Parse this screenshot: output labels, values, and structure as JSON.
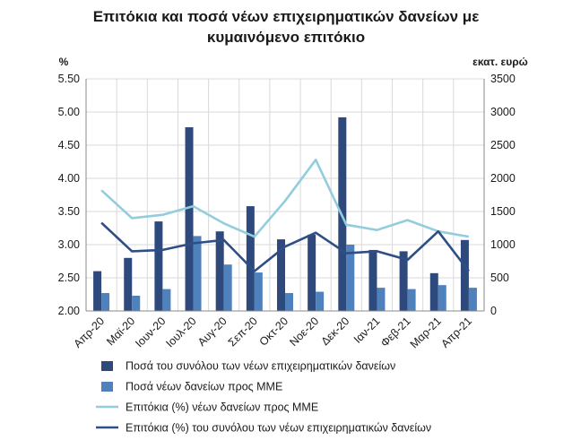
{
  "chart_data": {
    "type": "bar",
    "title_lines": [
      "Επιτόκια και ποσά νέων επιχειρηματικών δανείων με",
      "κυμαινόμενο επιτόκιο"
    ],
    "y_left_unit": "%",
    "y_right_unit": "εκατ. ευρώ",
    "y_left_ticks": [
      "2.00",
      "2.50",
      "3.00",
      "3.50",
      "4.00",
      "4.50",
      "5.00",
      "5.50"
    ],
    "y_right_ticks": [
      "0",
      "500",
      "1000",
      "1500",
      "2000",
      "2500",
      "3000",
      "3500"
    ],
    "y_left_range": [
      2.0,
      5.5
    ],
    "y_right_range": [
      0,
      3500
    ],
    "categories": [
      "Απρ-20",
      "Μαϊ-20",
      "Ιουν-20",
      "Ιουλ-20",
      "Αυγ-20",
      "Σεπ-20",
      "Οκτ-20",
      "Νοε-20",
      "Δεκ-20",
      "Ιαν-21",
      "Φεβ-21",
      "Μαρ-21",
      "Απρ-21"
    ],
    "legend_position": "bottom",
    "series": [
      {
        "name": "Ποσά του συνόλου των νέων επιχειρηματικών δανείων",
        "kind": "bar",
        "axis": "right",
        "color": "#2e4a7d",
        "values": [
          600,
          800,
          1350,
          2770,
          1200,
          1580,
          1080,
          1150,
          2920,
          920,
          900,
          570,
          1070
        ]
      },
      {
        "name": "Ποσά νέων δανείων προς ΜΜΕ",
        "kind": "bar",
        "axis": "right",
        "color": "#4f81bd",
        "values": [
          270,
          230,
          330,
          1130,
          700,
          580,
          270,
          290,
          1000,
          350,
          330,
          390,
          350
        ]
      },
      {
        "name": "Επιτόκια (%) νέων δανείων προς ΜΜΕ",
        "kind": "line",
        "axis": "left",
        "color": "#93cddd",
        "values": [
          3.82,
          3.4,
          3.45,
          3.58,
          3.32,
          3.12,
          3.66,
          4.28,
          3.3,
          3.22,
          3.37,
          3.2,
          3.12
        ]
      },
      {
        "name": "Επιτόκια (%) του συνόλου των νέων επιχειρηματικών δανείων",
        "kind": "line",
        "axis": "left",
        "color": "#2e4f86",
        "values": [
          3.33,
          2.9,
          2.92,
          3.02,
          3.07,
          2.6,
          2.97,
          3.18,
          2.87,
          2.9,
          2.77,
          3.2,
          2.6
        ]
      }
    ]
  }
}
